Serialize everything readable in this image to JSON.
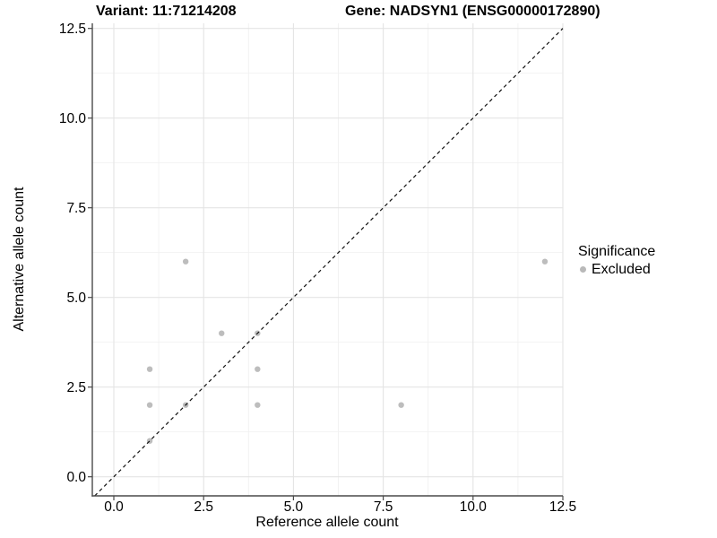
{
  "title": {
    "variant": "Variant: 11:71214208",
    "gene": "Gene: NADSYN1 (ENSG00000172890)"
  },
  "axes": {
    "x_label": "Reference allele count",
    "y_label": "Alternative allele count"
  },
  "legend": {
    "title": "Significance",
    "items": [
      {
        "label": "Excluded",
        "color": "#b9b9b9"
      }
    ]
  },
  "colors": {
    "point": "#b9b9b9",
    "identity_line": "#111111",
    "axis_line": "#4a4a4a",
    "grid_major": "#e4e4e4",
    "grid_minor": "#f1f1f1",
    "text": "#000000"
  },
  "chart_data": {
    "type": "scatter",
    "title": "Variant: 11:71214208   |   Gene: NADSYN1 (ENSG00000172890)",
    "xlabel": "Reference allele count",
    "ylabel": "Alternative allele count",
    "xlim": [
      0,
      12.5
    ],
    "ylim": [
      0,
      12.5
    ],
    "x_ticks": [
      0,
      2.5,
      5,
      7.5,
      10,
      12.5
    ],
    "y_ticks": [
      0,
      2.5,
      5,
      7.5,
      10,
      12.5
    ],
    "x_tick_labels": [
      "0.0",
      "2.5",
      "5.0",
      "7.5",
      "10.0",
      "12.5"
    ],
    "y_tick_labels": [
      "0.0",
      "2.5",
      "5.0",
      "7.5",
      "10.0",
      "12.5"
    ],
    "grid": true,
    "legend_position": "right",
    "series": [
      {
        "name": "Excluded",
        "color": "#b9b9b9",
        "points": [
          [
            1,
            1
          ],
          [
            1,
            2
          ],
          [
            1,
            3
          ],
          [
            2,
            2
          ],
          [
            2,
            6
          ],
          [
            3,
            4
          ],
          [
            4,
            2
          ],
          [
            4,
            3
          ],
          [
            4,
            4
          ],
          [
            8,
            2
          ],
          [
            12,
            6
          ]
        ]
      }
    ],
    "reference_line": {
      "type": "identity",
      "slope": 1,
      "intercept": 0,
      "style": "dashed",
      "color": "#111111"
    }
  }
}
